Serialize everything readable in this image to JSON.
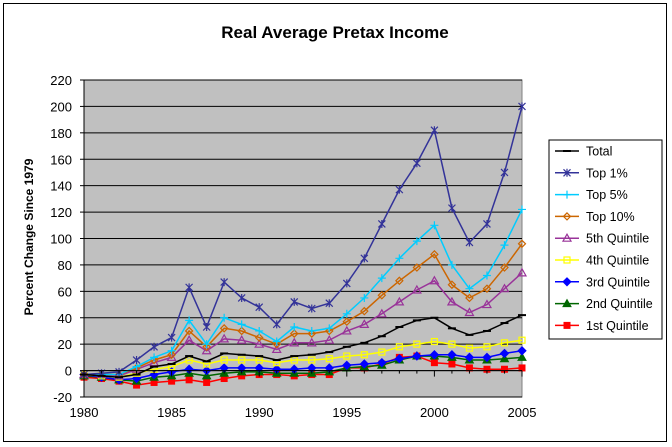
{
  "chart_data": {
    "type": "line",
    "title": "Real Average Pretax Income",
    "xlabel": "",
    "ylabel": "Percent Change Since 1979",
    "xlim": [
      1980,
      2005
    ],
    "ylim": [
      -20,
      220
    ],
    "x_ticks": [
      "1980",
      "1985",
      "1990",
      "1995",
      "2000",
      "2005"
    ],
    "y_ticks": [
      "-20",
      "0",
      "20",
      "40",
      "60",
      "80",
      "100",
      "120",
      "140",
      "160",
      "180",
      "200",
      "220"
    ],
    "plot_background": "#c0c0c0",
    "grid": "horizontal",
    "legend_position": "right",
    "x": [
      1979,
      1980,
      1981,
      1982,
      1983,
      1984,
      1985,
      1986,
      1987,
      1988,
      1989,
      1990,
      1991,
      1992,
      1993,
      1994,
      1995,
      1996,
      1997,
      1998,
      1999,
      2000,
      2001,
      2002,
      2003,
      2004,
      2005
    ],
    "series": [
      {
        "name": "Total",
        "color": "#000000",
        "marker": "dash",
        "values": [
          -3,
          -3,
          -4,
          -5,
          -3,
          3,
          5,
          11,
          7,
          13,
          12,
          11,
          8,
          11,
          12,
          14,
          18,
          21,
          26,
          33,
          38,
          40,
          32,
          27,
          30,
          36,
          42
        ]
      },
      {
        "name": "Top 1%",
        "color": "#333399",
        "marker": "star",
        "values": [
          -3,
          -3,
          -2,
          -1,
          8,
          18,
          25,
          63,
          33,
          67,
          55,
          48,
          35,
          52,
          47,
          51,
          66,
          85,
          111,
          137,
          157,
          182,
          123,
          97,
          111,
          150,
          200
        ]
      },
      {
        "name": "Top 5%",
        "color": "#00ccff",
        "marker": "plus",
        "values": [
          -3,
          -3,
          -3,
          -3,
          3,
          10,
          15,
          38,
          20,
          40,
          35,
          30,
          22,
          33,
          30,
          32,
          43,
          55,
          70,
          85,
          98,
          110,
          80,
          62,
          72,
          95,
          122
        ]
      },
      {
        "name": "Top 10%",
        "color": "#cc6600",
        "marker": "diamond-open",
        "values": [
          -3,
          -3,
          -3,
          -3,
          2,
          8,
          12,
          30,
          18,
          32,
          30,
          25,
          20,
          28,
          28,
          30,
          37,
          45,
          57,
          68,
          78,
          88,
          65,
          55,
          62,
          78,
          96
        ]
      },
      {
        "name": "5th Quintile",
        "color": "#993399",
        "marker": "triangle-open",
        "values": [
          -3,
          -3,
          -3,
          -4,
          1,
          6,
          10,
          23,
          15,
          24,
          23,
          20,
          16,
          21,
          21,
          23,
          30,
          35,
          43,
          52,
          61,
          68,
          52,
          44,
          50,
          62,
          74
        ]
      },
      {
        "name": "4th Quintile",
        "color": "#ffff00",
        "marker": "square-open",
        "values": [
          -3,
          -3,
          -4,
          -5,
          -2,
          1,
          3,
          8,
          5,
          8,
          8,
          8,
          6,
          8,
          8,
          9,
          11,
          12,
          14,
          18,
          20,
          22,
          20,
          17,
          18,
          21,
          23
        ]
      },
      {
        "name": "3rd Quintile",
        "color": "#0000ff",
        "marker": "diamond",
        "values": [
          -3,
          -3,
          -5,
          -7,
          -6,
          -3,
          -1,
          1,
          0,
          2,
          2,
          2,
          1,
          1,
          2,
          2,
          4,
          5,
          6,
          9,
          11,
          12,
          12,
          10,
          10,
          13,
          15
        ]
      },
      {
        "name": "2nd Quintile",
        "color": "#006600",
        "marker": "triangle",
        "values": [
          -4,
          -4,
          -5,
          -7,
          -8,
          -5,
          -4,
          -2,
          -4,
          -2,
          -1,
          -1,
          -2,
          -2,
          -2,
          -1,
          2,
          3,
          4,
          8,
          11,
          11,
          10,
          8,
          8,
          9,
          10
        ]
      },
      {
        "name": "1st Quintile",
        "color": "#ff0000",
        "marker": "square",
        "values": [
          -4,
          -5,
          -6,
          -8,
          -11,
          -9,
          -8,
          -7,
          -9,
          -6,
          -4,
          -3,
          -3,
          -4,
          -3,
          -3,
          2,
          2,
          5,
          10,
          11,
          6,
          5,
          2,
          1,
          1,
          2
        ]
      }
    ]
  }
}
